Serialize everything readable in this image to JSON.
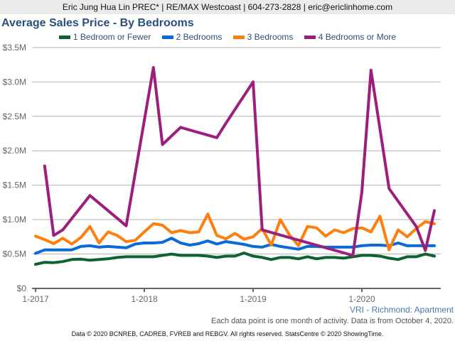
{
  "header": {
    "text": "Eric Jung Hua Lin PREC* | RE/MAX Westcoast | 604-273-2828 | eric@ericlinhome.com"
  },
  "footer": {
    "region": "VRI - Richmond: Apartment",
    "activity_note": "Each data point is one month of activity. Data is from October 4, 2020.",
    "copyright": "Data © 2020 BCNREB, CADREB, FVREB and REBGV. All rights reserved. StatsCentre © 2020 ShowingTime."
  },
  "chart_data": {
    "type": "line",
    "title": "Average Sales Price - By Bedrooms",
    "x_start": "2017-01",
    "x_end": "2020-09",
    "x_interval": "monthly",
    "x_tick_labels": [
      "1-2017",
      "1-2018",
      "1-2019",
      "1-2020"
    ],
    "y_tick_labels": [
      "$0",
      "$0.5M",
      "$1.0M",
      "$1.5M",
      "$2.0M",
      "$2.5M",
      "$3.0M",
      "$3.5M"
    ],
    "ylim": [
      0,
      3.5
    ],
    "y_unit": "millions of dollars",
    "grid": true,
    "legend_position": "top",
    "series": [
      {
        "name": "1 Bedroom or Fewer",
        "color": "#0e6130",
        "values": [
          0.35,
          0.38,
          0.375,
          0.39,
          0.42,
          0.425,
          0.41,
          0.42,
          0.43,
          0.45,
          0.46,
          0.46,
          0.46,
          0.46,
          0.48,
          0.5,
          0.48,
          0.48,
          0.48,
          0.47,
          0.45,
          0.47,
          0.47,
          0.515,
          0.47,
          0.45,
          0.42,
          0.45,
          0.45,
          0.43,
          0.46,
          0.43,
          0.45,
          0.45,
          0.44,
          0.46,
          0.48,
          0.48,
          0.47,
          0.44,
          0.42,
          0.46,
          0.46,
          0.5,
          0.47
        ]
      },
      {
        "name": "2 Bedrooms",
        "color": "#0a6ad8",
        "values": [
          0.51,
          0.56,
          0.56,
          0.56,
          0.56,
          0.61,
          0.62,
          0.6,
          0.61,
          0.6,
          0.59,
          0.645,
          0.66,
          0.66,
          0.67,
          0.73,
          0.66,
          0.63,
          0.65,
          0.69,
          0.645,
          0.68,
          0.66,
          0.64,
          0.61,
          0.6,
          0.64,
          0.61,
          0.59,
          0.57,
          0.61,
          0.61,
          0.6,
          0.6,
          0.6,
          0.6,
          0.62,
          0.63,
          0.63,
          0.62,
          0.66,
          0.62,
          0.62,
          0.62,
          0.62
        ]
      },
      {
        "name": "3 Bedrooms",
        "color": "#ff7f0e",
        "values": [
          0.76,
          0.71,
          0.65,
          0.73,
          0.645,
          0.74,
          0.9,
          0.66,
          0.82,
          0.77,
          0.68,
          0.7,
          0.82,
          0.94,
          0.92,
          0.81,
          0.84,
          0.81,
          0.82,
          1.08,
          0.77,
          0.72,
          0.8,
          0.715,
          0.75,
          0.87,
          0.63,
          1.0,
          0.78,
          0.62,
          0.9,
          0.88,
          0.76,
          0.85,
          0.81,
          0.87,
          0.88,
          0.82,
          1.05,
          0.56,
          0.85,
          0.75,
          0.87,
          0.97,
          0.94
        ]
      },
      {
        "name": "4 Bedrooms or More",
        "color": "#9c1f7c",
        "values": [
          null,
          1.78,
          0.77,
          0.85,
          null,
          null,
          1.35,
          null,
          null,
          null,
          0.91,
          null,
          null,
          3.21,
          2.09,
          null,
          2.34,
          null,
          null,
          null,
          2.19,
          2.4,
          null,
          null,
          3.0,
          0.85,
          null,
          null,
          null,
          null,
          null,
          null,
          null,
          null,
          null,
          0.48,
          1.4,
          3.17,
          null,
          1.45,
          null,
          null,
          0.9,
          0.55,
          1.13
        ]
      }
    ]
  }
}
